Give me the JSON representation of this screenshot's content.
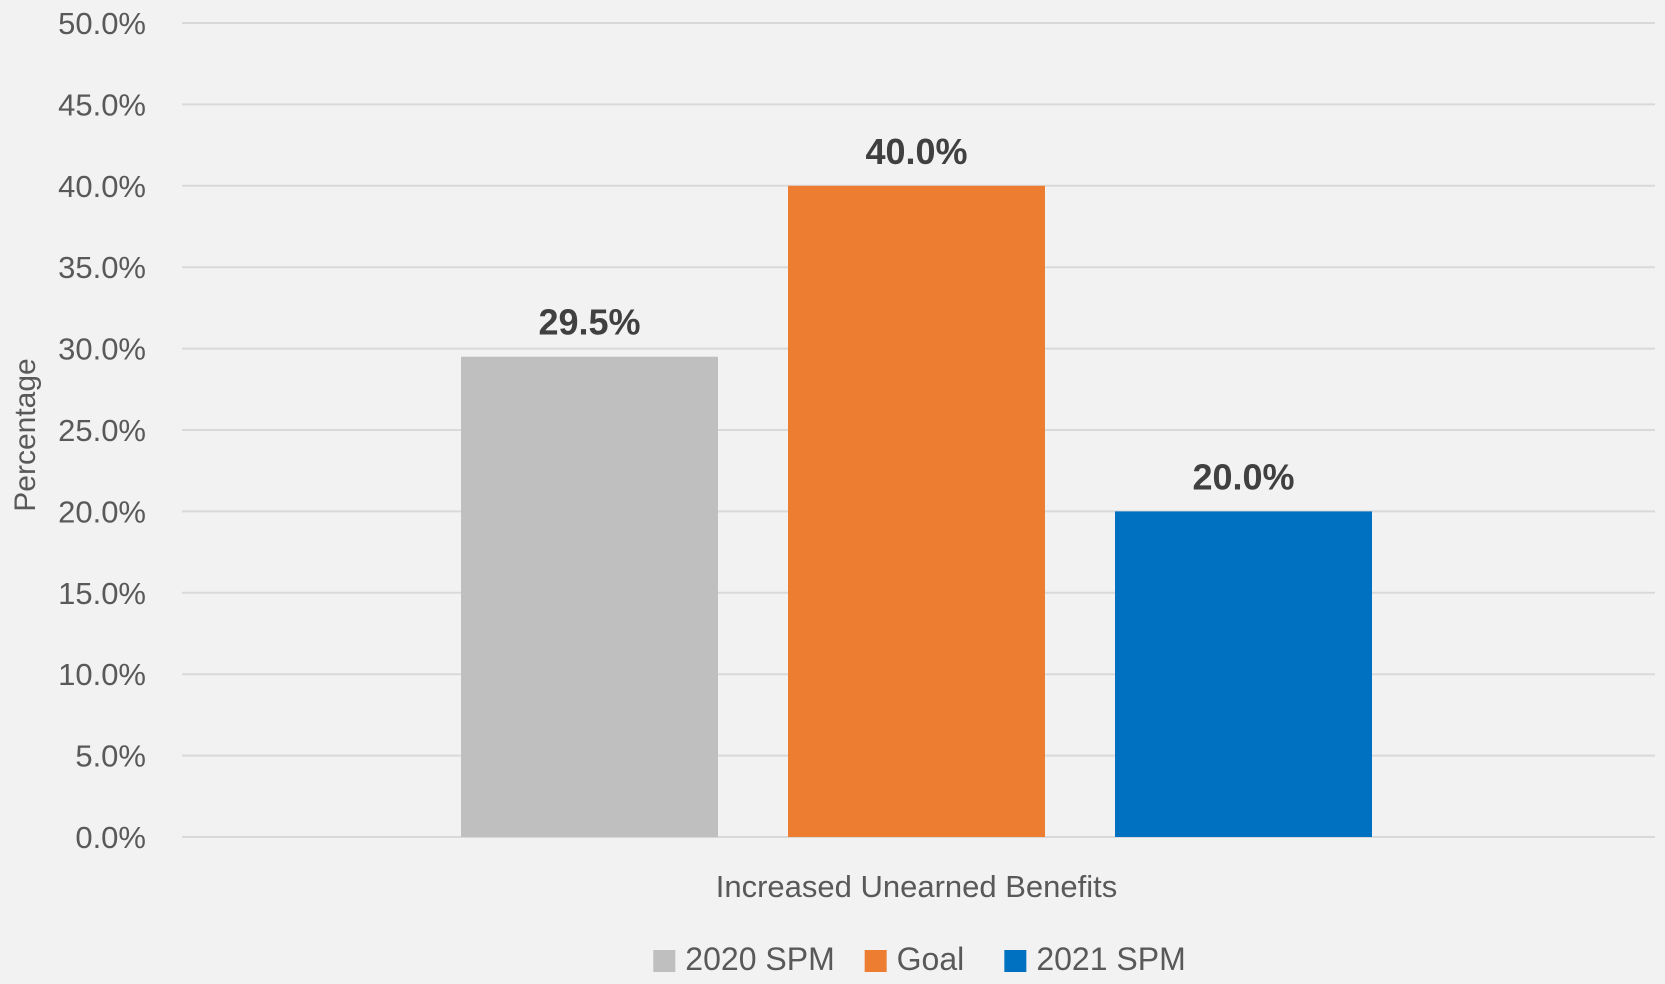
{
  "chart_data": {
    "type": "bar",
    "categories": [
      "Increased Unearned Benefits"
    ],
    "series": [
      {
        "name": "2020 SPM",
        "values": [
          29.5
        ],
        "color": "#bfbfbf",
        "label": "29.5%"
      },
      {
        "name": "Goal",
        "values": [
          40.0
        ],
        "color": "#ed7d31",
        "label": "40.0%"
      },
      {
        "name": "2021 SPM",
        "values": [
          20.0
        ],
        "color": "#0070c0",
        "label": "20.0%"
      }
    ],
    "xlabel": "",
    "ylabel": "Percentage",
    "ylim": [
      0,
      50
    ],
    "ytick_labels": [
      "0.0%",
      "5.0%",
      "10.0%",
      "15.0%",
      "20.0%",
      "25.0%",
      "30.0%",
      "35.0%",
      "40.0%",
      "45.0%",
      "50.0%"
    ],
    "grid": true,
    "legend": "bottom"
  }
}
